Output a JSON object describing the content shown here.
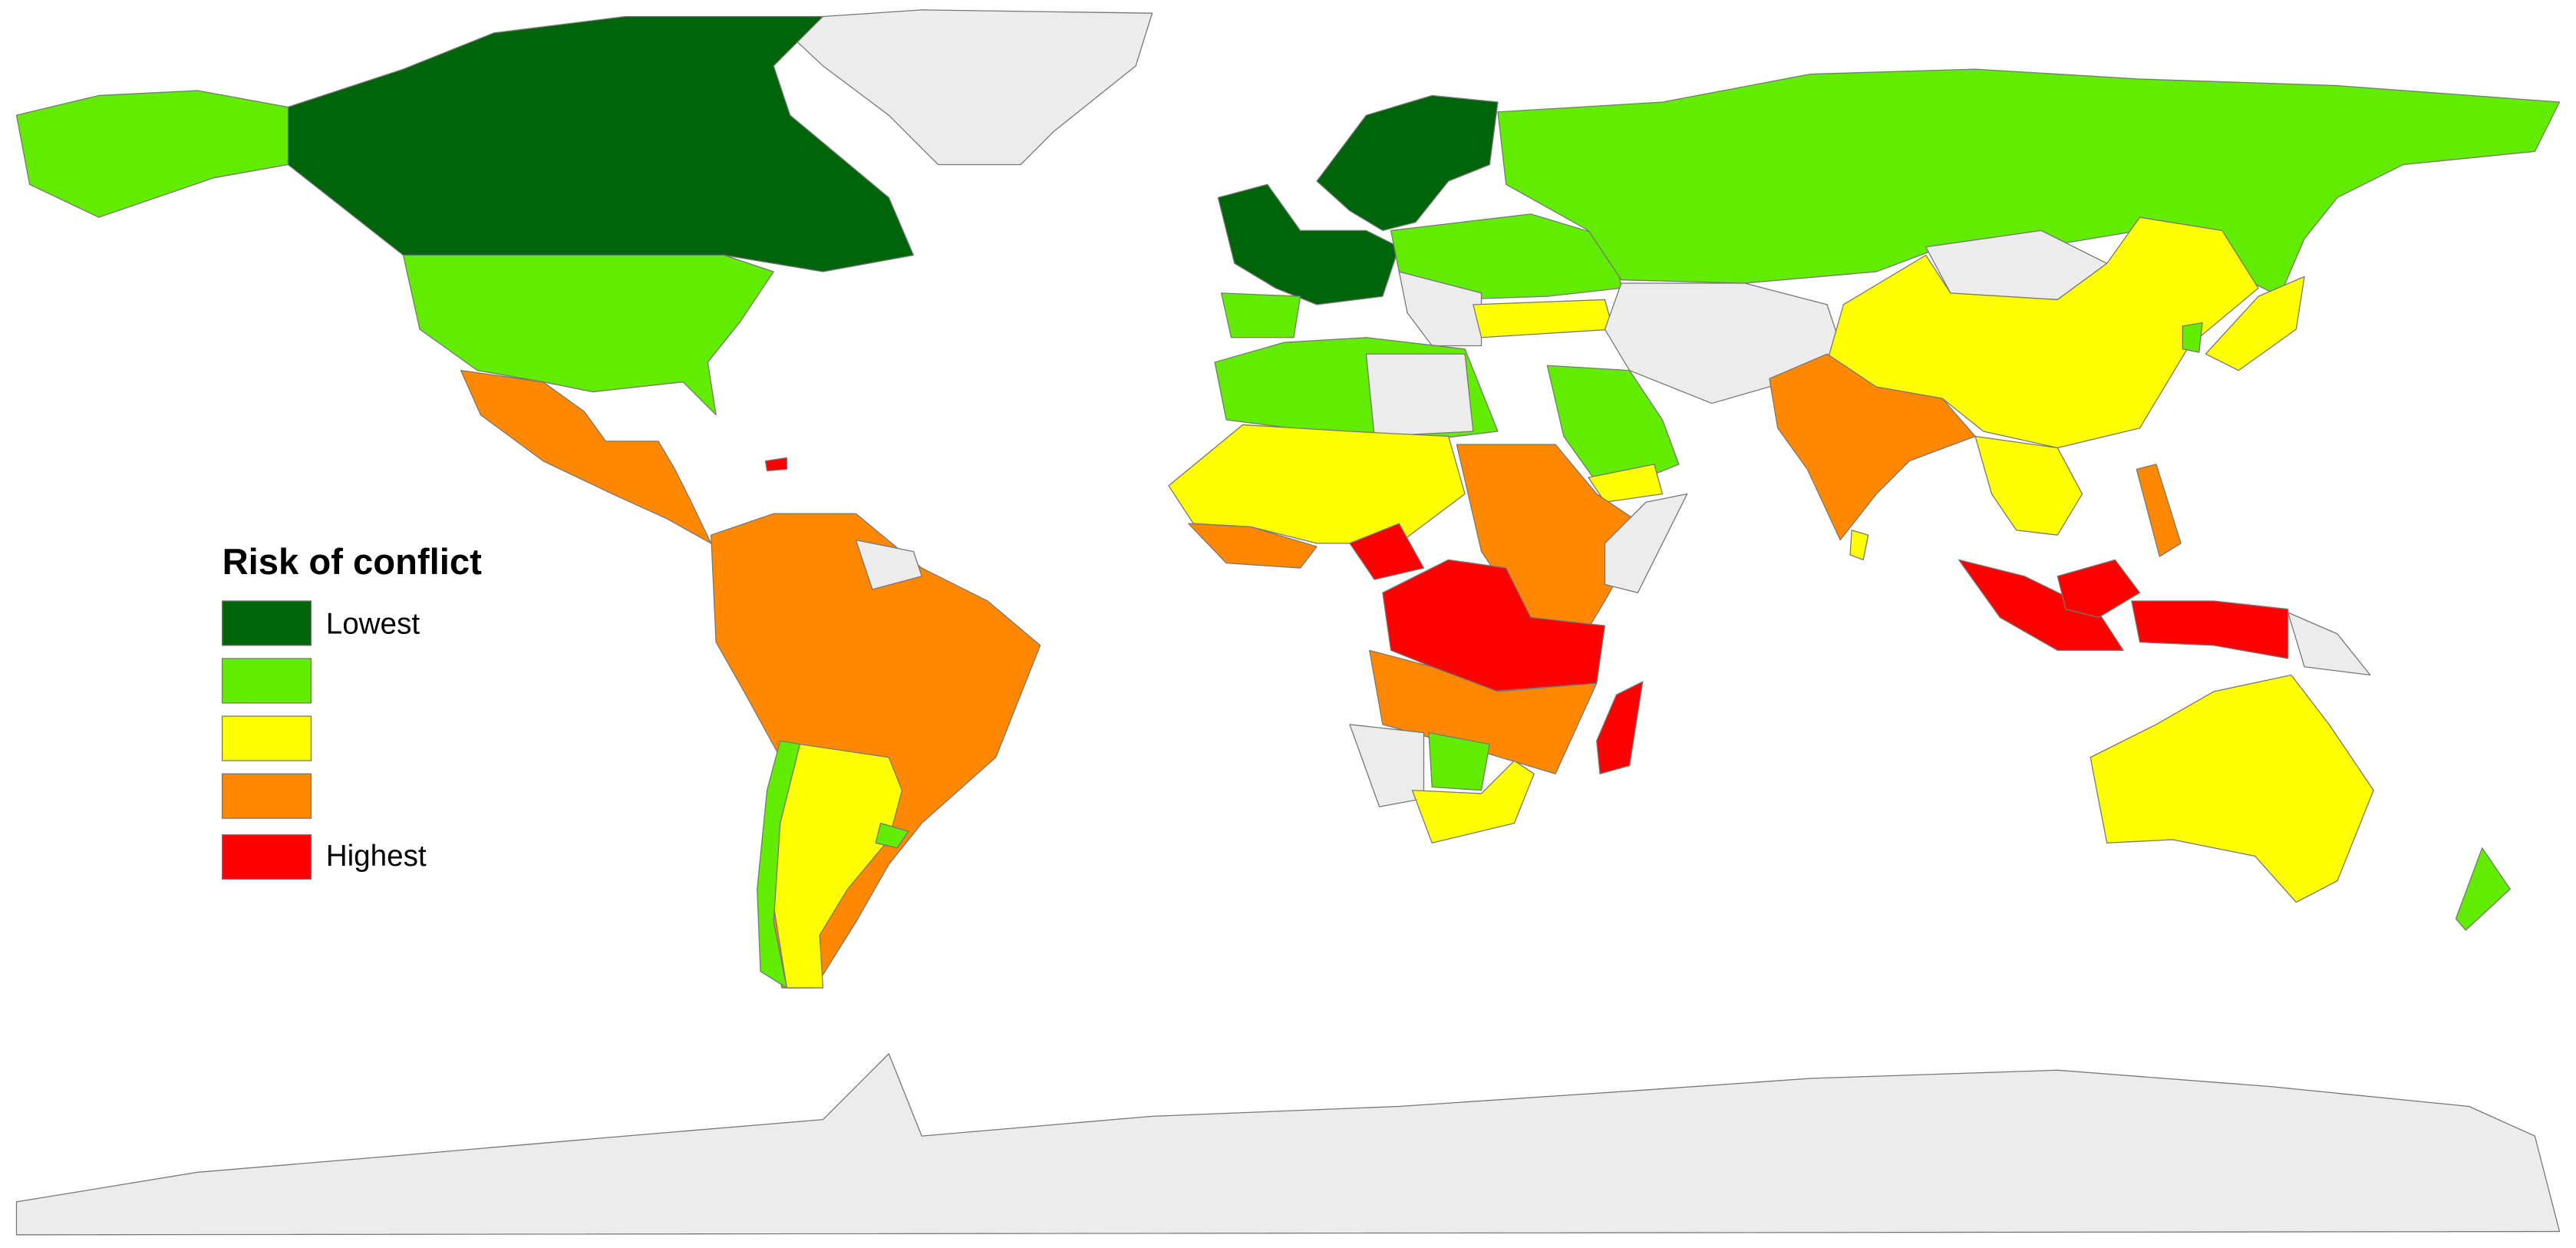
{
  "legend": {
    "title": "Risk of conflict",
    "low_label": "Lowest",
    "high_label": "Highest",
    "colors": [
      "#00650a",
      "#62ec00",
      "#ffff00",
      "#ff8800",
      "#ff0000"
    ]
  }
}
